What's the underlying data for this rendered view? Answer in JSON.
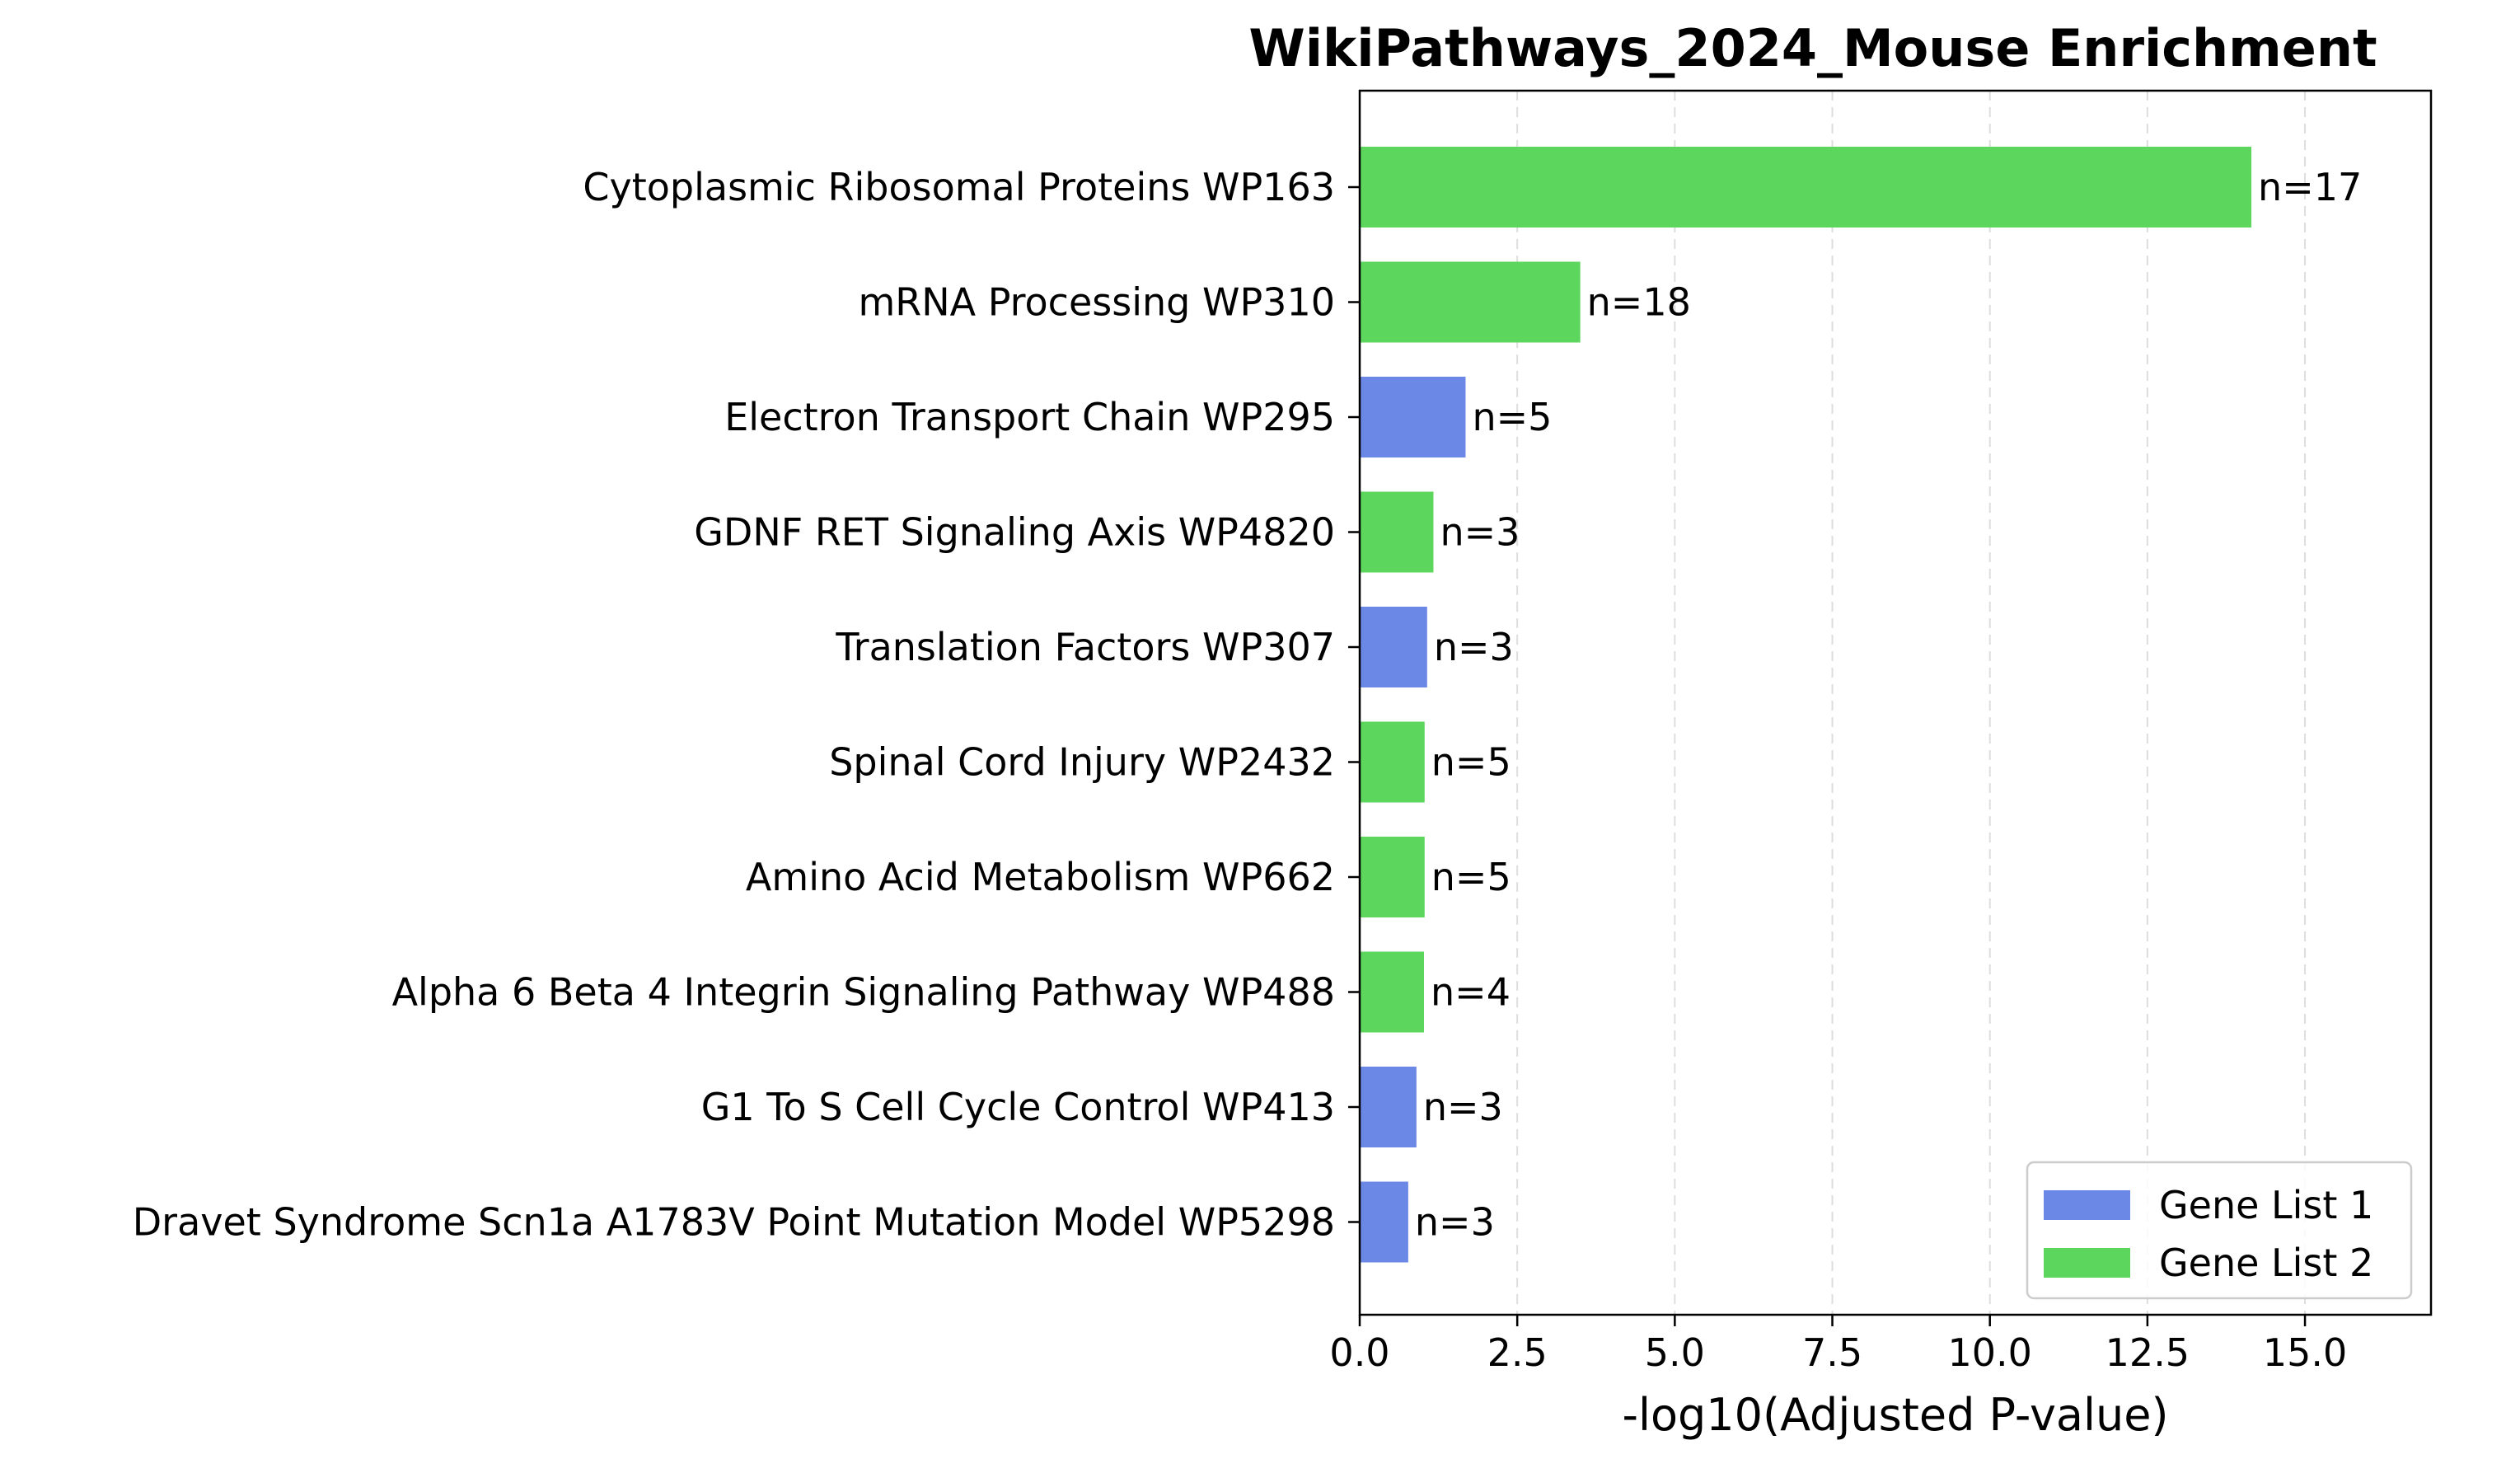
{
  "chart_data": {
    "type": "bar",
    "orientation": "horizontal",
    "title": "WikiPathways_2024_Mouse Enrichment",
    "xlabel": "-log10(Adjusted P-value)",
    "ylabel": "",
    "xlim": [
      0,
      17
    ],
    "xticks": [
      0.0,
      2.5,
      5.0,
      7.5,
      10.0,
      12.5,
      15.0
    ],
    "xtick_labels": [
      "0.0",
      "2.5",
      "5.0",
      "7.5",
      "10.0",
      "12.5",
      "15.0"
    ],
    "grid": "x-axis dashed",
    "legend_position": "bottom-right",
    "series": [
      {
        "name": "Gene List 1",
        "color": "#6b88e6"
      },
      {
        "name": "Gene List 2",
        "color": "#5cd65c"
      }
    ],
    "bars": [
      {
        "category": "Cytoplasmic Ribosomal Proteins WP163",
        "value": 14.15,
        "series": "Gene List 2",
        "count_label": "n=17"
      },
      {
        "category": "mRNA Processing WP310",
        "value": 3.5,
        "series": "Gene List 2",
        "count_label": "n=18"
      },
      {
        "category": "Electron Transport Chain WP295",
        "value": 1.68,
        "series": "Gene List 1",
        "count_label": "n=5"
      },
      {
        "category": "GDNF RET Signaling Axis WP4820",
        "value": 1.17,
        "series": "Gene List 2",
        "count_label": "n=3"
      },
      {
        "category": "Translation Factors WP307",
        "value": 1.07,
        "series": "Gene List 1",
        "count_label": "n=3"
      },
      {
        "category": "Spinal Cord Injury WP2432",
        "value": 1.03,
        "series": "Gene List 2",
        "count_label": "n=5"
      },
      {
        "category": "Amino Acid Metabolism WP662",
        "value": 1.03,
        "series": "Gene List 2",
        "count_label": "n=5"
      },
      {
        "category": "Alpha 6 Beta 4 Integrin Signaling Pathway WP488",
        "value": 1.02,
        "series": "Gene List 2",
        "count_label": "n=4"
      },
      {
        "category": "G1 To S Cell Cycle Control WP413",
        "value": 0.9,
        "series": "Gene List 1",
        "count_label": "n=3"
      },
      {
        "category": "Dravet Syndrome Scn1a A1783V Point Mutation Model WP5298",
        "value": 0.77,
        "series": "Gene List 1",
        "count_label": "n=3"
      }
    ]
  }
}
